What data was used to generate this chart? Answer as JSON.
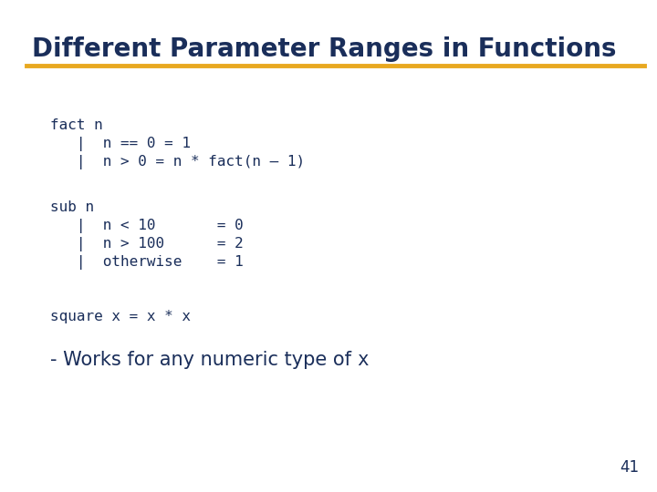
{
  "title": "Different Parameter Ranges in Functions",
  "title_color": "#1a2e5a",
  "title_fontsize": 20,
  "title_bold": true,
  "separator_color": "#e8a820",
  "bg_color": "#ffffff",
  "page_number": "41",
  "code_color": "#1a2e5a",
  "code_fontsize": 11.5,
  "code_font": "monospace",
  "note_prefix": "- Works for any numeric type of ",
  "note_code": "x",
  "note_fontsize": 15
}
